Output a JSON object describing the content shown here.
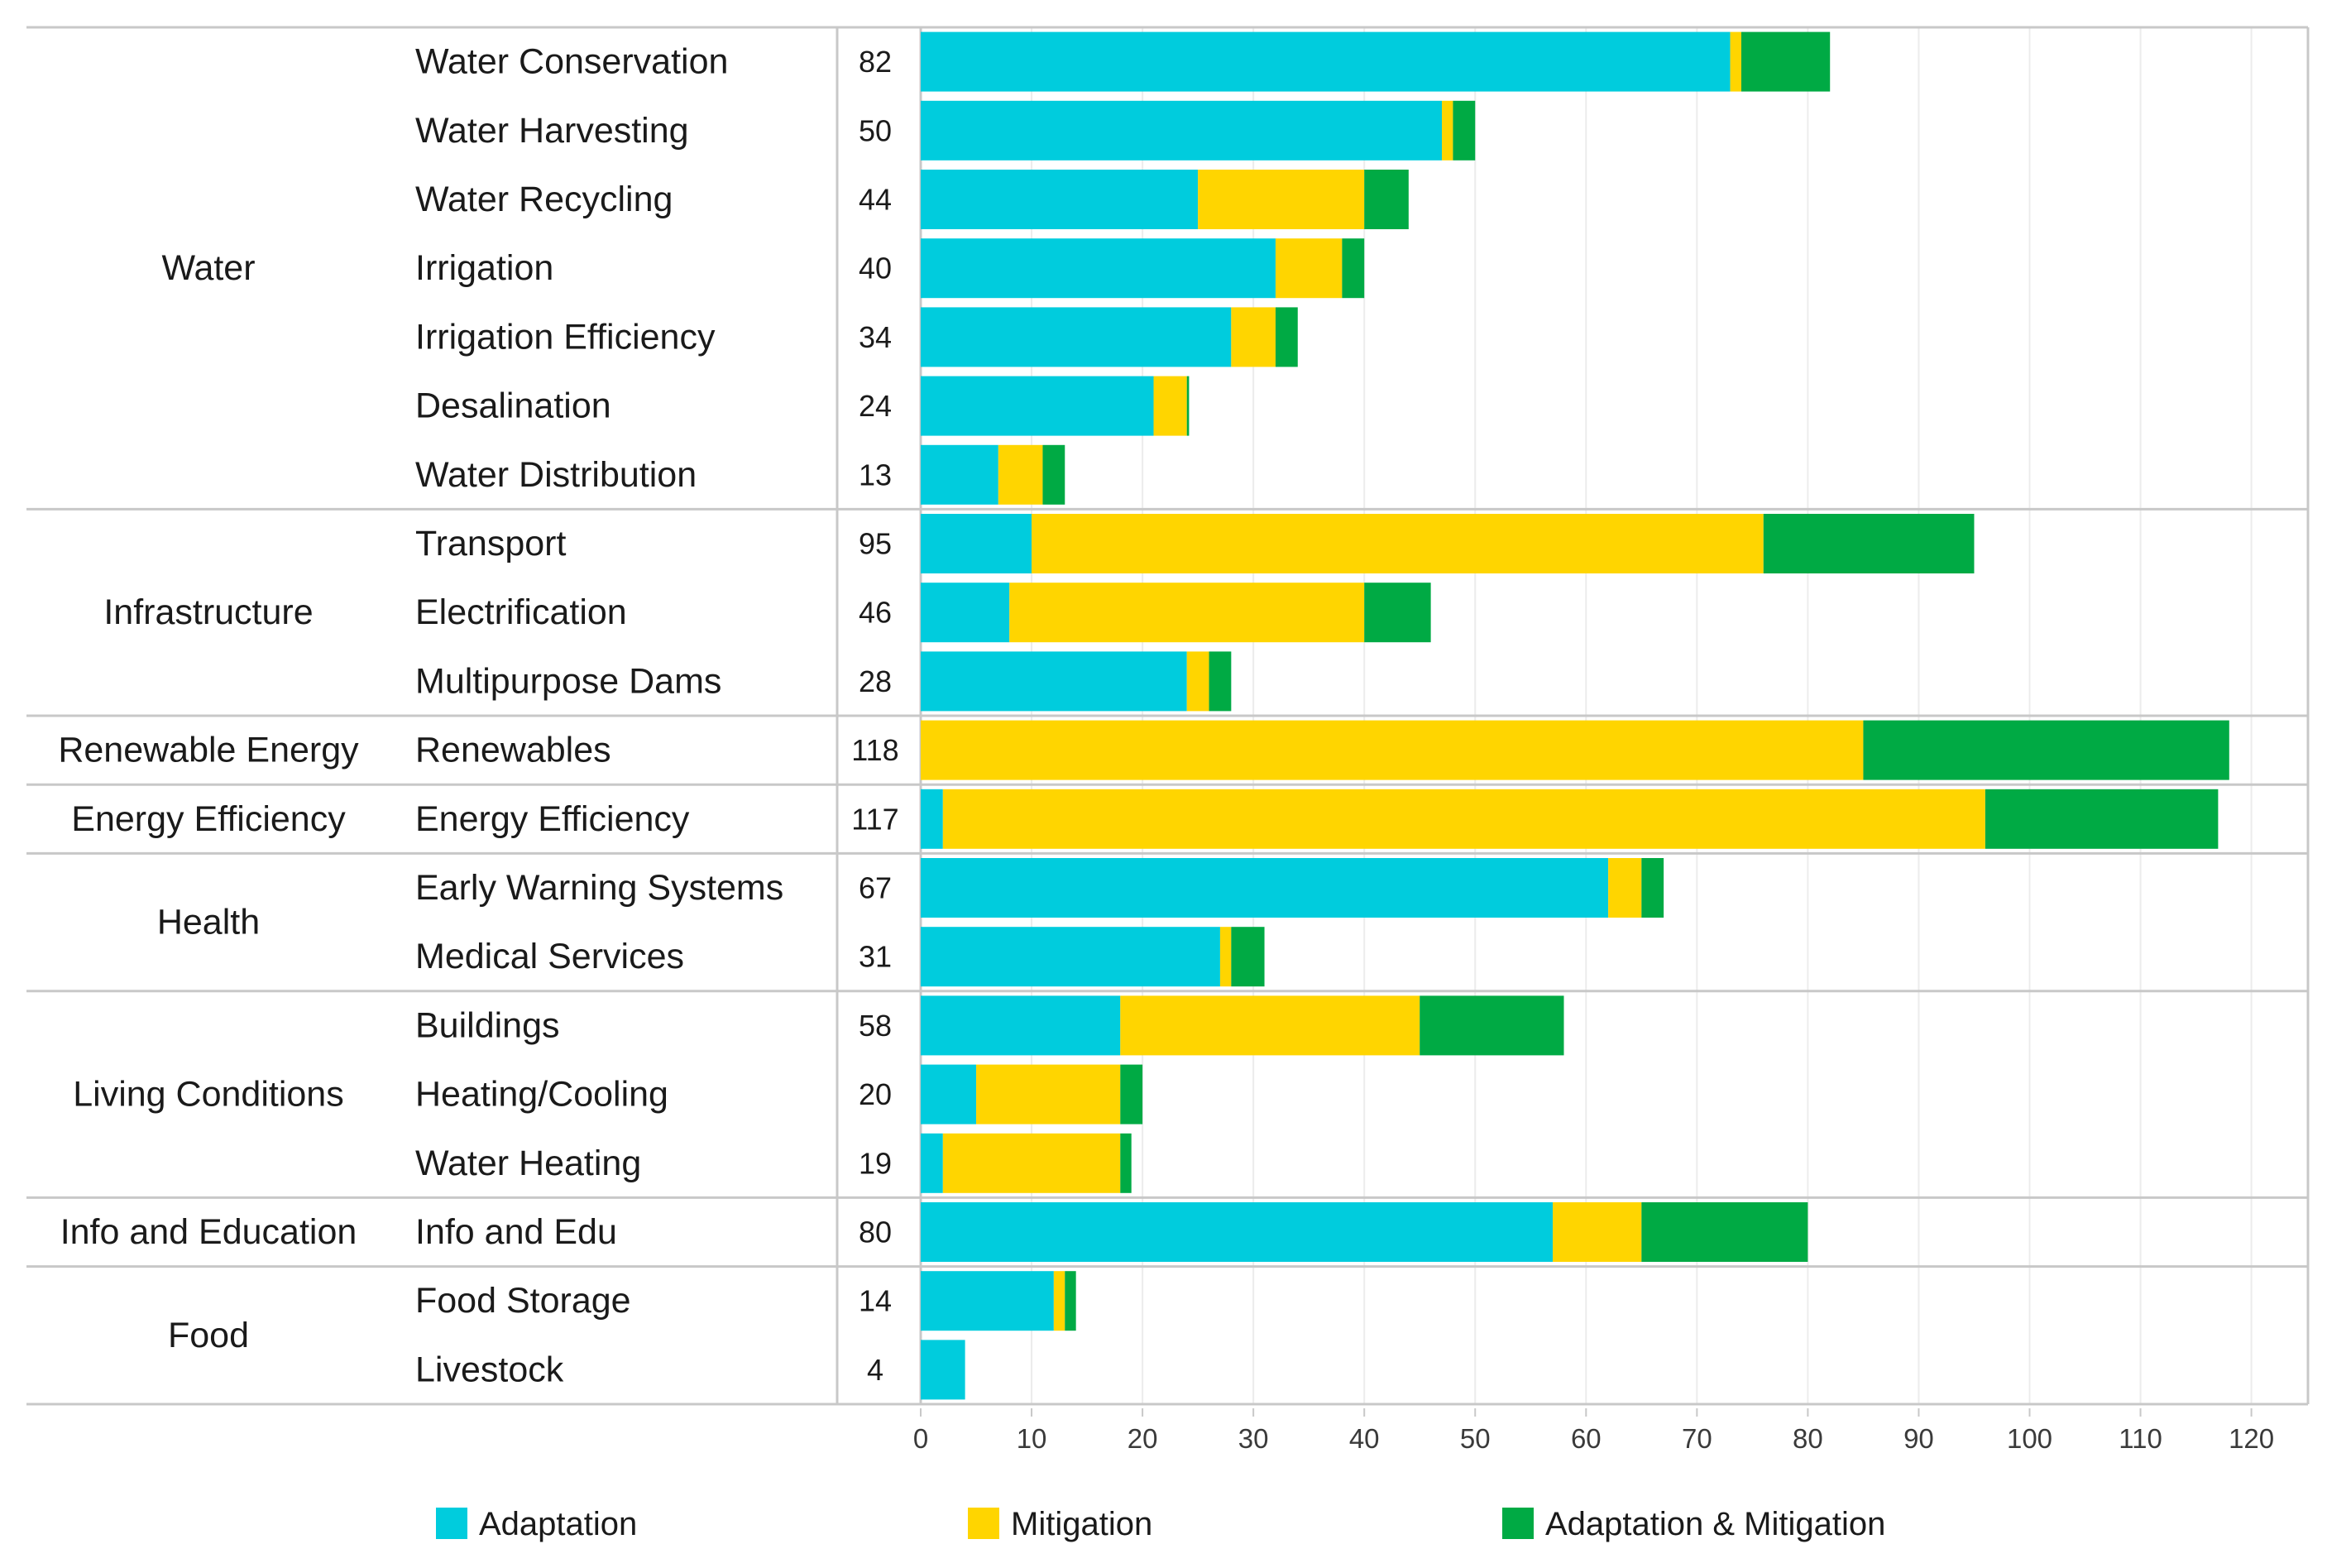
{
  "chart_data": {
    "type": "bar",
    "orientation": "horizontal",
    "stacked": true,
    "title": "",
    "xlabel": "",
    "ylabel": "",
    "xlim": [
      0,
      120
    ],
    "ticks": [
      0,
      10,
      20,
      30,
      40,
      50,
      60,
      70,
      80,
      90,
      100,
      110,
      120
    ],
    "series": [
      {
        "name": "Adaptation",
        "color": "#00CCDD"
      },
      {
        "name": "Mitigation",
        "color": "#FFD500"
      },
      {
        "name": "Adaptation & Mitigation",
        "color": "#00AA44"
      }
    ],
    "groups": [
      {
        "name": "Water",
        "rows": [
          {
            "label": "Water Conservation",
            "total": "82",
            "values": [
              73,
              1,
              8
            ]
          },
          {
            "label": "Water Harvesting",
            "total": "50",
            "values": [
              47,
              1,
              2
            ]
          },
          {
            "label": "Water Recycling",
            "total": "44",
            "values": [
              25,
              15,
              4
            ]
          },
          {
            "label": "Irrigation",
            "total": "40",
            "values": [
              32,
              6,
              2
            ]
          },
          {
            "label": "Irrigation Efficiency",
            "total": "34",
            "values": [
              28,
              4,
              2
            ]
          },
          {
            "label": "Desalination",
            "total": "24",
            "values": [
              21,
              3,
              0.2
            ]
          },
          {
            "label": "Water Distribution",
            "total": "13",
            "values": [
              7,
              4,
              2
            ]
          }
        ]
      },
      {
        "name": "Infrastructure",
        "rows": [
          {
            "label": "Transport",
            "total": "95",
            "values": [
              10,
              66,
              19
            ]
          },
          {
            "label": "Electrification",
            "total": "46",
            "values": [
              8,
              32,
              6
            ]
          },
          {
            "label": "Multipurpose Dams",
            "total": "28",
            "values": [
              24,
              2,
              2
            ]
          }
        ]
      },
      {
        "name": "Renewable Energy",
        "rows": [
          {
            "label": "Renewables",
            "total": "118",
            "values": [
              0,
              85,
              33
            ]
          }
        ]
      },
      {
        "name": "Energy Efficiency",
        "rows": [
          {
            "label": "Energy Efficiency",
            "total": "117",
            "values": [
              2,
              94,
              21
            ]
          }
        ]
      },
      {
        "name": "Health",
        "rows": [
          {
            "label": "Early Warning Systems",
            "total": "67",
            "values": [
              62,
              3,
              2
            ]
          },
          {
            "label": "Medical Services",
            "total": "31",
            "values": [
              27,
              1,
              3
            ]
          }
        ]
      },
      {
        "name": "Living Conditions",
        "rows": [
          {
            "label": "Buildings",
            "total": "58",
            "values": [
              18,
              27,
              13
            ]
          },
          {
            "label": "Heating/Cooling",
            "total": "20",
            "values": [
              5,
              13,
              2
            ]
          },
          {
            "label": "Water Heating",
            "total": "19",
            "values": [
              2,
              16,
              1
            ]
          }
        ]
      },
      {
        "name": "Info and Education",
        "rows": [
          {
            "label": "Info and Edu",
            "total": "80",
            "values": [
              57,
              8,
              15
            ]
          }
        ]
      },
      {
        "name": "Food",
        "rows": [
          {
            "label": "Food Storage",
            "total": "14",
            "values": [
              12,
              1,
              1
            ]
          },
          {
            "label": "Livestock",
            "total": "4",
            "values": [
              4,
              0,
              0
            ]
          }
        ]
      }
    ]
  }
}
